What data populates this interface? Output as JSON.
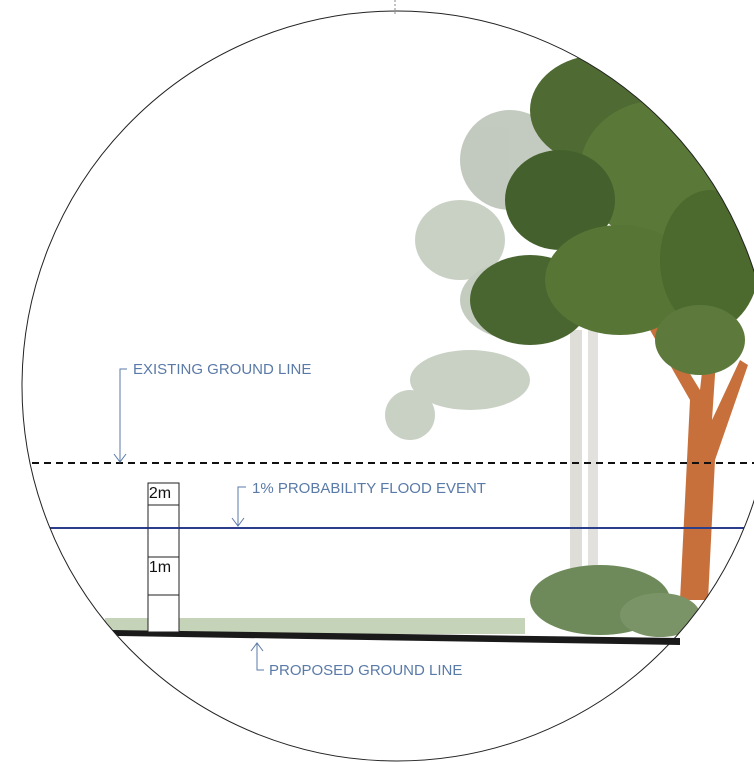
{
  "labels": {
    "existing_ground": "EXISTING GROUND LINE",
    "flood_event": "1% PROBABILITY FLOOD EVENT",
    "proposed_ground": "PROPOSED GROUND LINE"
  },
  "depth_post": {
    "upper": "2m",
    "lower": "1m"
  }
}
